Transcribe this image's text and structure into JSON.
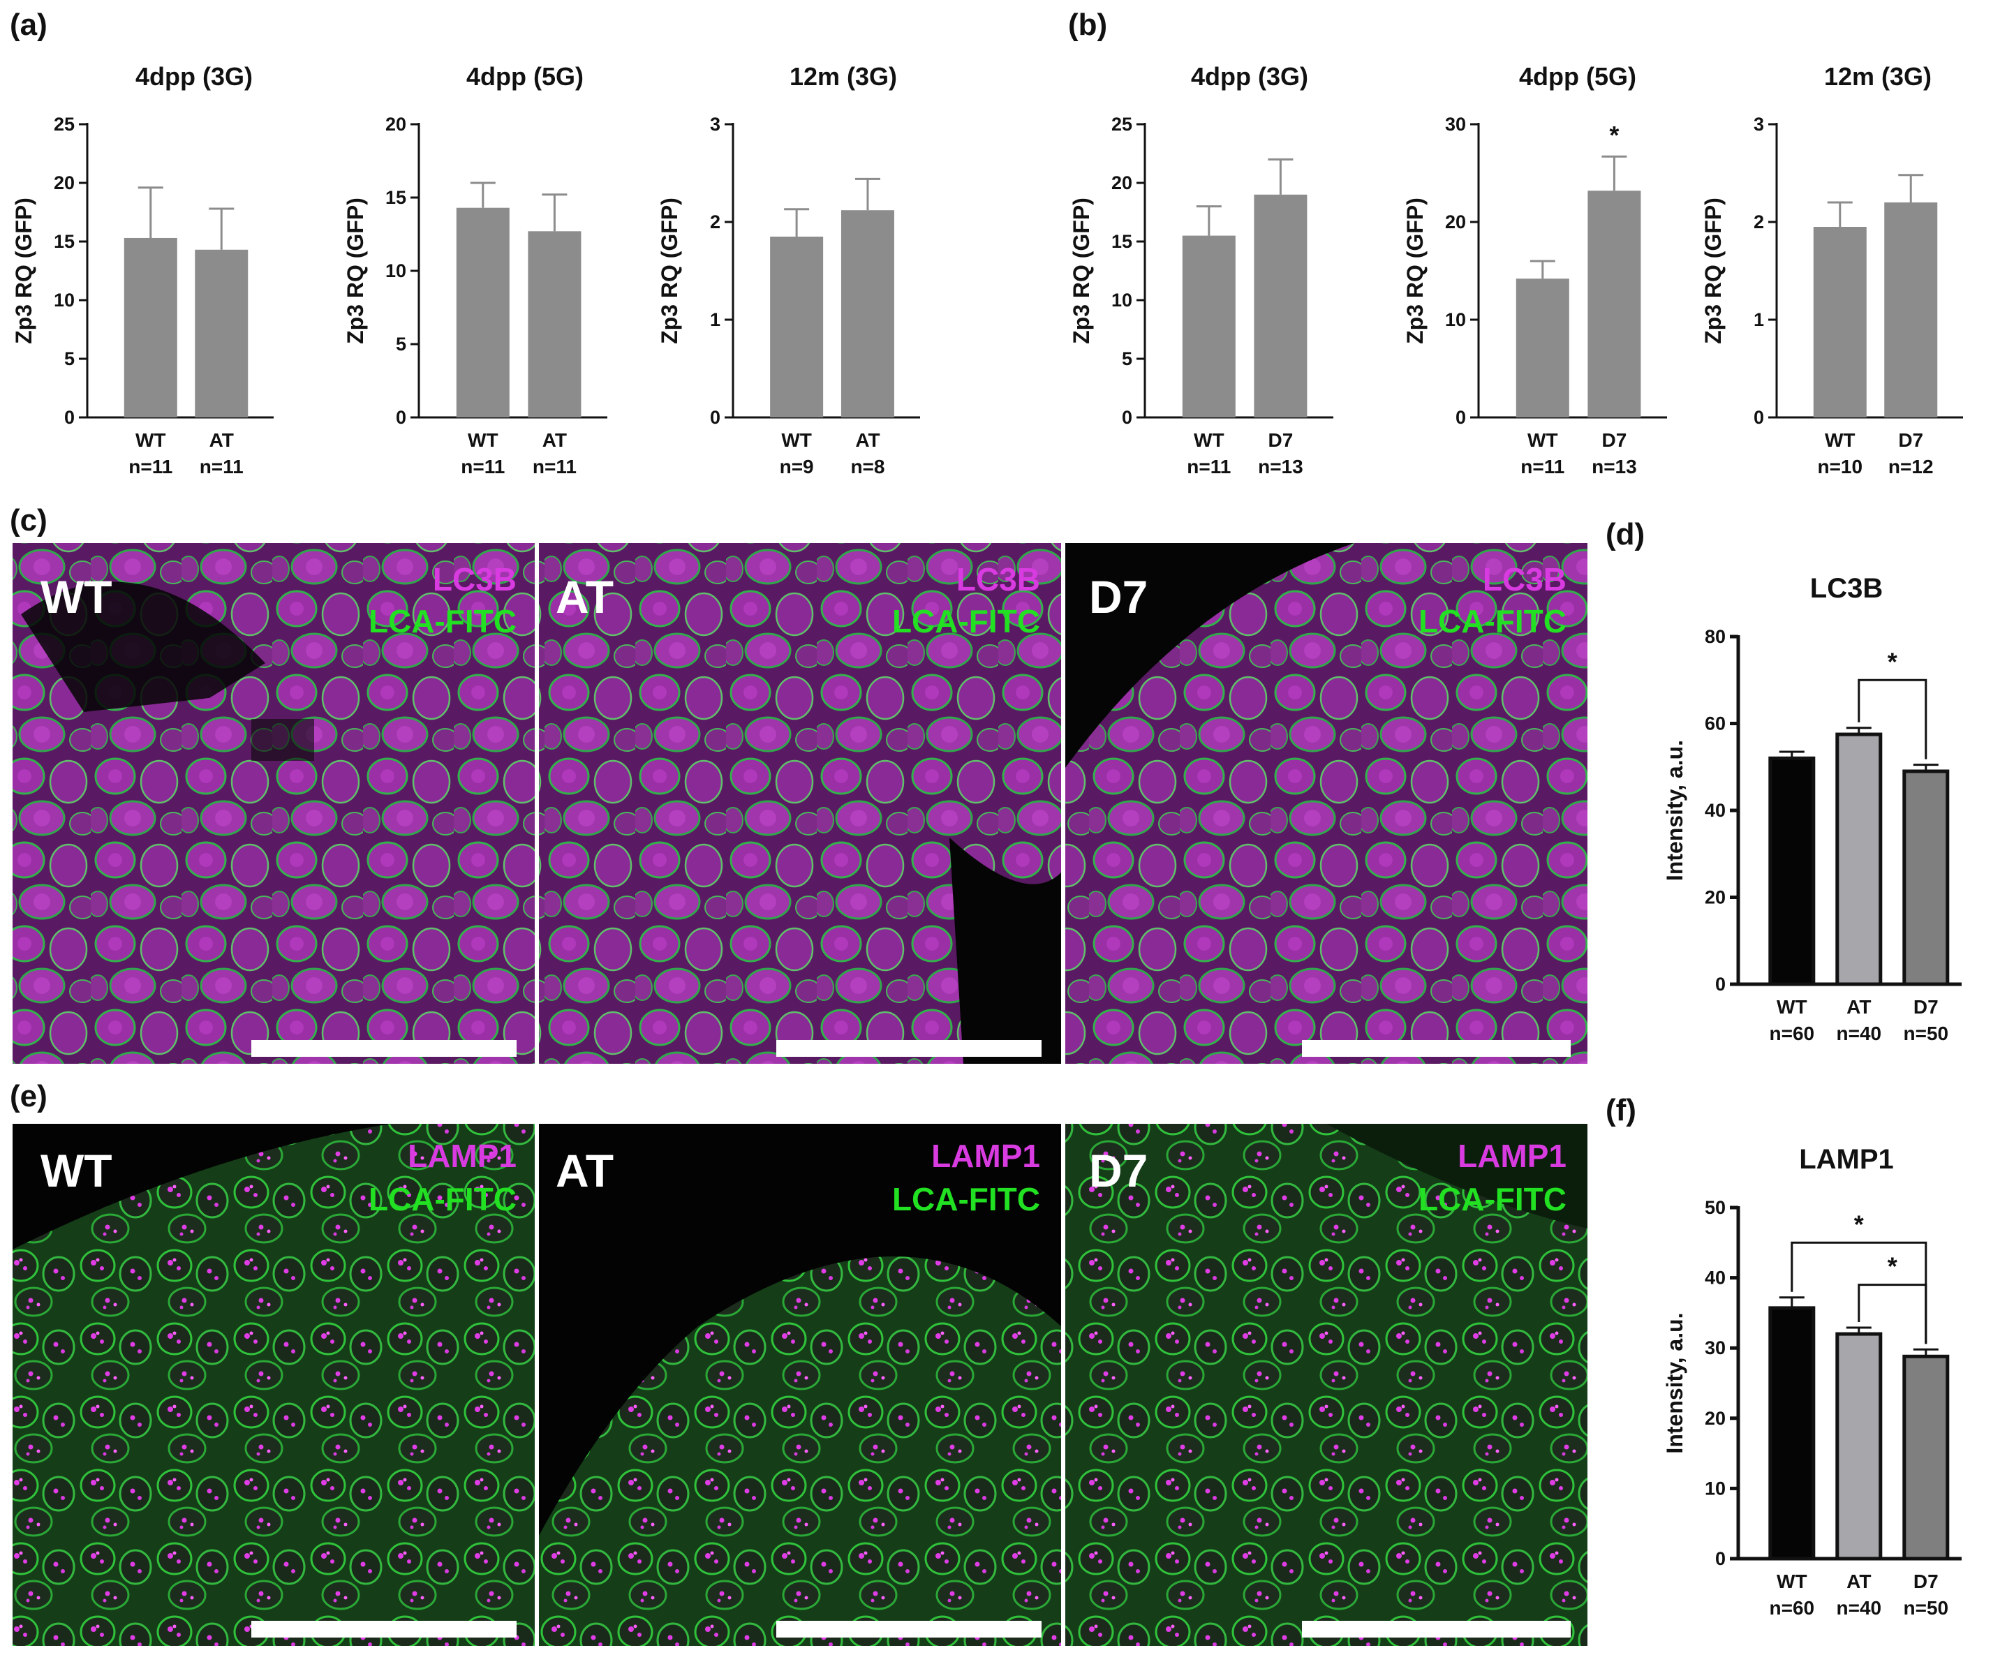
{
  "panel_labels": [
    "(a)",
    "(b)",
    "(c)",
    "(d)",
    "(e)",
    "(f)"
  ],
  "colors": {
    "bar_grey": "#8c8c8c",
    "bar_black": "#050505",
    "bar_light": "#a6a6ab",
    "bar_mid": "#7f7f7f",
    "magenta": "#d83be0",
    "green": "#22e022",
    "scale_bar": "#ffffff"
  },
  "image_panels": {
    "c": {
      "marker_label": "LC3B",
      "counterstain_label": "LCA-FITC",
      "conditions": [
        "WT",
        "AT",
        "D7"
      ]
    },
    "e": {
      "marker_label": "LAMP1",
      "counterstain_label": "LCA-FITC",
      "conditions": [
        "WT",
        "AT",
        "D7"
      ]
    }
  },
  "chart_data": [
    {
      "panel": "a",
      "type": "bar",
      "title": "4dpp (3G)",
      "ylabel": "Zp3 RQ (GFP)",
      "ylim": [
        0,
        25
      ],
      "yticks": [
        0,
        5,
        10,
        15,
        20,
        25
      ],
      "categories": [
        "WT",
        "AT"
      ],
      "n_labels": [
        "n=11",
        "n=11"
      ],
      "values": [
        15.3,
        14.3
      ],
      "errors": [
        4.3,
        3.5
      ],
      "colors": [
        "#8c8c8c",
        "#8c8c8c"
      ],
      "significance": []
    },
    {
      "panel": "a",
      "type": "bar",
      "title": "4dpp (5G)",
      "ylabel": "Zp3 RQ (GFP)",
      "ylim": [
        0,
        20
      ],
      "yticks": [
        0,
        5,
        10,
        15,
        20
      ],
      "categories": [
        "WT",
        "AT"
      ],
      "n_labels": [
        "n=11",
        "n=11"
      ],
      "values": [
        14.3,
        12.7
      ],
      "errors": [
        1.7,
        2.5
      ],
      "colors": [
        "#8c8c8c",
        "#8c8c8c"
      ],
      "significance": []
    },
    {
      "panel": "a",
      "type": "bar",
      "title": "12m (3G)",
      "ylabel": "Zp3 RQ (GFP)",
      "ylim": [
        0,
        3
      ],
      "yticks": [
        0,
        1,
        2,
        3
      ],
      "categories": [
        "WT",
        "AT"
      ],
      "n_labels": [
        "n=9",
        "n=8"
      ],
      "values": [
        1.85,
        2.12
      ],
      "errors": [
        0.28,
        0.32
      ],
      "colors": [
        "#8c8c8c",
        "#8c8c8c"
      ],
      "significance": []
    },
    {
      "panel": "b",
      "type": "bar",
      "title": "4dpp (3G)",
      "ylabel": "Zp3 RQ (GFP)",
      "ylim": [
        0,
        25
      ],
      "yticks": [
        0,
        5,
        10,
        15,
        20,
        25
      ],
      "categories": [
        "WT",
        "D7"
      ],
      "n_labels": [
        "n=11",
        "n=13"
      ],
      "values": [
        15.5,
        19.0
      ],
      "errors": [
        2.5,
        3.0
      ],
      "colors": [
        "#8c8c8c",
        "#8c8c8c"
      ],
      "significance": []
    },
    {
      "panel": "b",
      "type": "bar",
      "title": "4dpp (5G)",
      "ylabel": "Zp3 RQ (GFP)",
      "ylim": [
        0,
        30
      ],
      "yticks": [
        0,
        10,
        20,
        30
      ],
      "categories": [
        "WT",
        "D7"
      ],
      "n_labels": [
        "n=11",
        "n=13"
      ],
      "values": [
        14.2,
        23.2
      ],
      "errors": [
        1.8,
        3.5
      ],
      "colors": [
        "#8c8c8c",
        "#8c8c8c"
      ],
      "significance": [
        {
          "type": "star",
          "bar": 1,
          "label": "*"
        }
      ]
    },
    {
      "panel": "b",
      "type": "bar",
      "title": "12m (3G)",
      "ylabel": "Zp3 RQ (GFP)",
      "ylim": [
        0,
        3
      ],
      "yticks": [
        0,
        1,
        2,
        3
      ],
      "categories": [
        "WT",
        "D7"
      ],
      "n_labels": [
        "n=10",
        "n=12"
      ],
      "values": [
        1.95,
        2.2
      ],
      "errors": [
        0.25,
        0.28
      ],
      "colors": [
        "#8c8c8c",
        "#8c8c8c"
      ],
      "significance": []
    },
    {
      "panel": "d",
      "type": "bar",
      "title": "LC3B",
      "ylabel": "Intensity, a.u.",
      "ylim": [
        0,
        80
      ],
      "yticks": [
        0,
        20,
        40,
        60,
        80
      ],
      "categories": [
        "WT",
        "AT",
        "D7"
      ],
      "n_labels": [
        "n=60",
        "n=40",
        "n=50"
      ],
      "values": [
        52,
        57.5,
        49
      ],
      "errors": [
        1.5,
        1.5,
        1.5
      ],
      "colors": [
        "#050505",
        "#a6a6ab",
        "#7f7f7f"
      ],
      "significance": [
        {
          "type": "bracket",
          "from": 1,
          "to": 2,
          "y": 70,
          "label": "*"
        }
      ]
    },
    {
      "panel": "f",
      "type": "bar",
      "title": "LAMP1",
      "ylabel": "Intensity, a.u.",
      "ylim": [
        0,
        50
      ],
      "yticks": [
        0,
        10,
        20,
        30,
        40,
        50
      ],
      "categories": [
        "WT",
        "AT",
        "D7"
      ],
      "n_labels": [
        "n=60",
        "n=40",
        "n=50"
      ],
      "values": [
        35.7,
        32.0,
        28.8
      ],
      "errors": [
        1.5,
        0.9,
        1.0
      ],
      "colors": [
        "#050505",
        "#a6a6ab",
        "#7f7f7f"
      ],
      "significance": [
        {
          "type": "bracket",
          "from": 0,
          "to": 2,
          "y": 45,
          "label": "*"
        },
        {
          "type": "bracket",
          "from": 1,
          "to": 2,
          "y": 39,
          "label": "*"
        }
      ]
    }
  ]
}
